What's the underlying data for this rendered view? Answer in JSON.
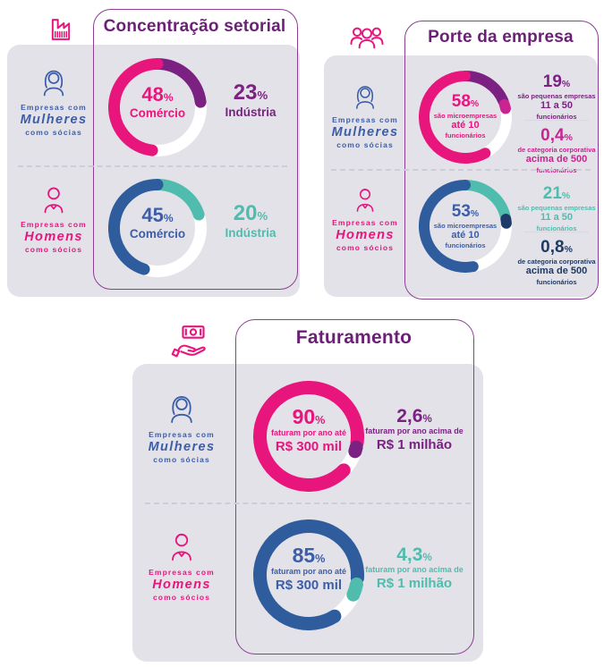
{
  "colors": {
    "pink": "#E8157D",
    "purple": "#7B2182",
    "titlePurple": "#6C1F77",
    "magenta": "#C9248F",
    "blue": "#2F5C9C",
    "navy": "#1E3A67",
    "teal": "#50BCAE",
    "labelBlue": "#3C5EA8",
    "panelGray": "#E3E2E9",
    "boxBorder": "#8C3E92"
  },
  "icons": {
    "factory-icon": "factory outline",
    "people-group-icon": "three people outline",
    "money-hand-icon": "hand holding banknote",
    "woman-icon": "woman with long hair outline",
    "man-icon": "man with collar outline"
  },
  "panels": {
    "setorial": {
      "title": "Concentração setorial",
      "rows": [
        {
          "who": {
            "pre": "Empresas com",
            "name": "Mulheres",
            "post": "como sócias"
          },
          "center": {
            "value": "48",
            "pct": "%",
            "label": "Comércio"
          },
          "side": {
            "value": "23",
            "pct": "%",
            "label": "Indústria"
          }
        },
        {
          "who": {
            "pre": "Empresas com",
            "name": "Homens",
            "post": "como sócios"
          },
          "center": {
            "value": "45",
            "pct": "%",
            "label": "Comércio"
          },
          "side": {
            "value": "20",
            "pct": "%",
            "label": "Indústria"
          }
        }
      ]
    },
    "porte": {
      "title": "Porte da empresa",
      "rows": [
        {
          "who": {
            "pre": "Empresas com",
            "name": "Mulheres",
            "post": "como sócias"
          },
          "center": {
            "value": "58",
            "pct": "%",
            "l1": "são microempresas",
            "l2": "até 10",
            "l3": "funcionários"
          },
          "sideA": {
            "value": "19",
            "pct": "%",
            "l1": "são pequenas empresas",
            "l2": "11 a 50",
            "l3": "funcionários"
          },
          "sideB": {
            "value": "0,4",
            "pct": "%",
            "l1": "de categoria corporativa",
            "l2": "acima de 500",
            "l3": "funcionários"
          }
        },
        {
          "who": {
            "pre": "Empresas com",
            "name": "Homens",
            "post": "como sócios"
          },
          "center": {
            "value": "53",
            "pct": "%",
            "l1": "são microempresas",
            "l2": "até 10",
            "l3": "funcionários"
          },
          "sideA": {
            "value": "21",
            "pct": "%",
            "l1": "são pequenas empresas",
            "l2": "11 a 50",
            "l3": "funcionários"
          },
          "sideB": {
            "value": "0,8",
            "pct": "%",
            "l1": "de categoria corporativa",
            "l2": "acima de 500",
            "l3": "funcionários"
          }
        }
      ]
    },
    "faturamento": {
      "title": "Faturamento",
      "rows": [
        {
          "who": {
            "pre": "Empresas com",
            "name": "Mulheres",
            "post": "como sócias"
          },
          "center": {
            "value": "90",
            "pct": "%",
            "l1": "faturam por ano até",
            "l2": "R$ 300 mil"
          },
          "side": {
            "value": "2,6",
            "pct": "%",
            "l1": "faturam por ano acima de",
            "l2": "R$ 1 milhão"
          }
        },
        {
          "who": {
            "pre": "Empresas com",
            "name": "Homens",
            "post": "como sócios"
          },
          "center": {
            "value": "85",
            "pct": "%",
            "l1": "faturam por ano até",
            "l2": "R$ 300 mil"
          },
          "side": {
            "value": "4,3",
            "pct": "%",
            "l1": "faturam por ano acima de",
            "l2": "R$ 1 milhão"
          }
        }
      ]
    }
  },
  "donuts": [
    {
      "size": 110,
      "stroke": 13,
      "segments": [
        {
          "color": "#7B2182",
          "start": 0,
          "sweep": 83
        },
        {
          "color": "#E8157D",
          "start": 187,
          "sweep": 173
        }
      ]
    },
    {
      "size": 110,
      "stroke": 13,
      "segments": [
        {
          "color": "#50BCAE",
          "start": 0,
          "sweep": 72
        },
        {
          "color": "#2F5C9C",
          "start": 198,
          "sweep": 162
        }
      ]
    },
    {
      "size": 104,
      "stroke": 12,
      "segments": [
        {
          "color": "#7B2182",
          "start": 0,
          "sweep": 68
        },
        {
          "color": "#C9248F",
          "start": 72,
          "sweep": 6
        },
        {
          "color": "#E8157D",
          "start": 151,
          "sweep": 209
        }
      ]
    },
    {
      "size": 104,
      "stroke": 12,
      "segments": [
        {
          "color": "#50BCAE",
          "start": 0,
          "sweep": 76
        },
        {
          "color": "#1E3A67",
          "start": 80,
          "sweep": 6
        },
        {
          "color": "#2F5C9C",
          "start": 169,
          "sweep": 191
        }
      ]
    },
    {
      "size": 124,
      "stroke": 15,
      "segments": [
        {
          "color": "#E8157D",
          "start": 134,
          "sweep": 324
        },
        {
          "color": "#7B2182",
          "start": 103,
          "sweep": 5
        }
      ]
    },
    {
      "size": 124,
      "stroke": 15,
      "segments": [
        {
          "color": "#2F5C9C",
          "start": 148,
          "sweep": 306
        },
        {
          "color": "#50BCAE",
          "start": 101,
          "sweep": 13
        }
      ]
    }
  ],
  "chart_data": [
    {
      "type": "donut",
      "panel": "Concentração setorial",
      "group": "Empresas com Mulheres como sócias",
      "slices": [
        {
          "label": "Comércio",
          "value": 48,
          "color": "#E8157D"
        },
        {
          "label": "Indústria",
          "value": 23,
          "color": "#7B2182"
        }
      ]
    },
    {
      "type": "donut",
      "panel": "Concentração setorial",
      "group": "Empresas com Homens como sócios",
      "slices": [
        {
          "label": "Comércio",
          "value": 45,
          "color": "#2F5C9C"
        },
        {
          "label": "Indústria",
          "value": 20,
          "color": "#50BCAE"
        }
      ]
    },
    {
      "type": "donut",
      "panel": "Porte da empresa",
      "group": "Empresas com Mulheres como sócias",
      "slices": [
        {
          "label": "são microempresas até 10 funcionários",
          "value": 58,
          "color": "#E8157D"
        },
        {
          "label": "são pequenas empresas 11 a 50 funcionários",
          "value": 19,
          "color": "#7B2182"
        },
        {
          "label": "de categoria corporativa acima de 500 funcionários",
          "value": 0.4,
          "color": "#C9248F"
        }
      ]
    },
    {
      "type": "donut",
      "panel": "Porte da empresa",
      "group": "Empresas com Homens como sócios",
      "slices": [
        {
          "label": "são microempresas até 10 funcionários",
          "value": 53,
          "color": "#2F5C9C"
        },
        {
          "label": "são pequenas empresas 11 a 50 funcionários",
          "value": 21,
          "color": "#50BCAE"
        },
        {
          "label": "de categoria corporativa acima de 500 funcionários",
          "value": 0.8,
          "color": "#1E3A67"
        }
      ]
    },
    {
      "type": "donut",
      "panel": "Faturamento",
      "group": "Empresas com Mulheres como sócias",
      "slices": [
        {
          "label": "faturam por ano até R$ 300 mil",
          "value": 90,
          "color": "#E8157D"
        },
        {
          "label": "faturam por ano acima de R$ 1 milhão",
          "value": 2.6,
          "color": "#7B2182"
        }
      ]
    },
    {
      "type": "donut",
      "panel": "Faturamento",
      "group": "Empresas com Homens como sócios",
      "slices": [
        {
          "label": "faturam por ano até R$ 300 mil",
          "value": 85,
          "color": "#2F5C9C"
        },
        {
          "label": "faturam por ano acima de R$ 1 milhão",
          "value": 4.3,
          "color": "#50BCAE"
        }
      ]
    }
  ]
}
